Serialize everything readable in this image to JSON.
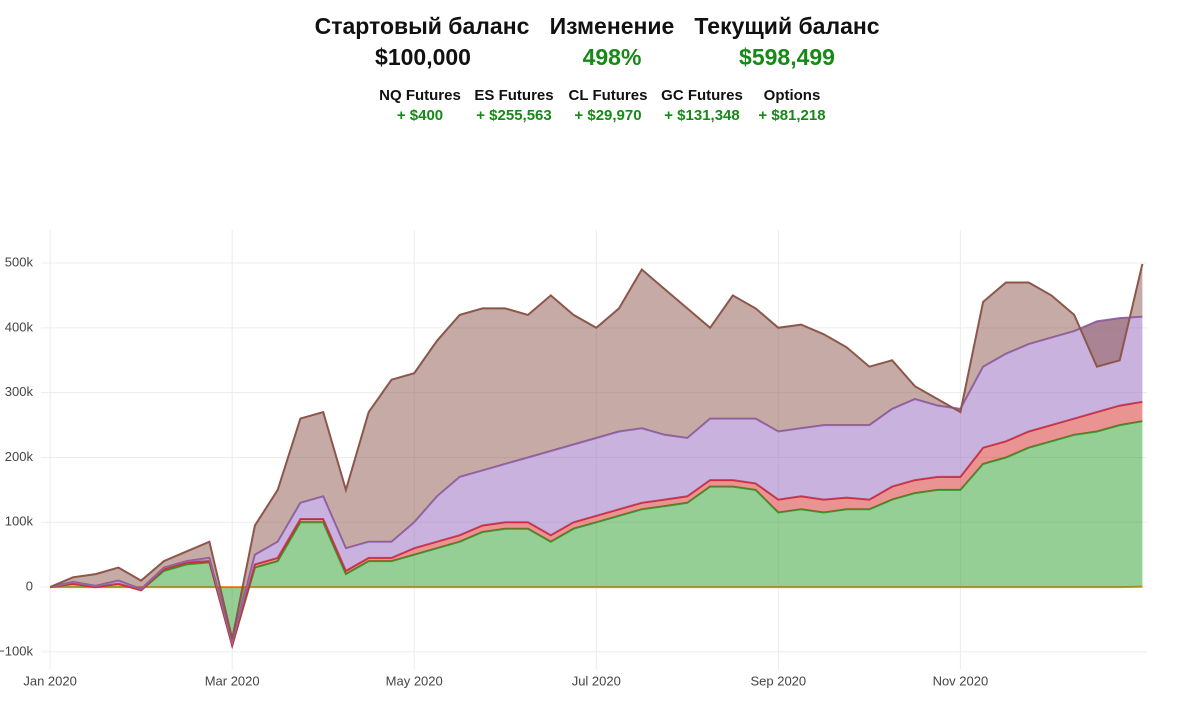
{
  "header": {
    "labels": [
      "Стартовый баланс",
      "Изменение",
      "Текущий баланс"
    ],
    "values": [
      "$100,000",
      "498%",
      "$598,499"
    ],
    "totals": [
      "+ $400",
      "+ $255,563",
      "+ $29,970",
      "+ $131,348",
      "+ $81,218"
    ]
  },
  "chart_data": {
    "type": "stacked_area",
    "x": [
      0,
      0.25,
      0.5,
      0.75,
      1,
      1.25,
      1.5,
      1.75,
      2,
      2.25,
      2.5,
      2.75,
      3,
      3.25,
      3.5,
      3.75,
      4,
      4.25,
      4.5,
      4.75,
      5,
      5.25,
      5.5,
      5.75,
      6,
      6.25,
      6.5,
      6.75,
      7,
      7.25,
      7.5,
      7.75,
      8,
      8.25,
      8.5,
      8.75,
      9,
      9.25,
      9.5,
      9.75,
      10,
      10.25,
      10.5,
      10.75,
      11,
      11.25,
      11.5,
      11.75,
      12
    ],
    "xlim": [
      -0.1,
      12.05
    ],
    "xticks": [
      {
        "value": 0,
        "label": "Jan 2020"
      },
      {
        "value": 2,
        "label": "Mar 2020"
      },
      {
        "value": 4,
        "label": "May 2020"
      },
      {
        "value": 6,
        "label": "Jul 2020"
      },
      {
        "value": 8,
        "label": "Sep 2020"
      },
      {
        "value": 10,
        "label": "Nov 2020"
      }
    ],
    "ylim": [
      -128000,
      551000
    ],
    "yticks": [
      {
        "value": -100000,
        "label": "−100k"
      },
      0,
      {
        "value": 100000,
        "label": "100k"
      },
      {
        "value": 200000,
        "label": "200k"
      },
      {
        "value": 300000,
        "label": "300k"
      },
      {
        "value": 400000,
        "label": "400k"
      },
      {
        "value": 500000,
        "label": "500k"
      }
    ],
    "grid": true,
    "series": [
      {
        "name": "NQ Futures",
        "color": "#ff7f0e",
        "values": [
          0,
          0,
          0,
          0,
          0,
          0,
          0,
          0,
          0,
          0,
          0,
          0,
          0,
          0,
          0,
          0,
          0,
          0,
          0,
          0,
          0,
          0,
          0,
          0,
          0,
          0,
          0,
          0,
          0,
          0,
          0,
          0,
          0,
          0,
          0,
          0,
          0,
          0,
          0,
          0,
          0,
          0,
          0,
          0,
          0,
          0,
          0,
          0,
          400
        ]
      },
      {
        "name": "ES Futures",
        "color": "#2ca02c",
        "values": [
          0,
          5000,
          0,
          5000,
          -5000,
          25000,
          35000,
          38000,
          -90000,
          30000,
          40000,
          100000,
          100000,
          20000,
          40000,
          40000,
          50000,
          60000,
          70000,
          85000,
          90000,
          90000,
          70000,
          90000,
          100000,
          110000,
          120000,
          125000,
          130000,
          155000,
          155000,
          150000,
          115000,
          120000,
          115000,
          120000,
          120000,
          135000,
          145000,
          150000,
          150000,
          190000,
          200000,
          215000,
          225000,
          235000,
          240000,
          250000,
          255563
        ]
      },
      {
        "name": "CL Futures",
        "color": "#d62728",
        "values": [
          0,
          0,
          0,
          0,
          0,
          3000,
          3000,
          2000,
          0,
          5000,
          5000,
          5000,
          5000,
          5000,
          5000,
          5000,
          10000,
          10000,
          10000,
          10000,
          10000,
          10000,
          10000,
          10000,
          10000,
          10000,
          10000,
          10000,
          10000,
          10000,
          10000,
          10000,
          20000,
          20000,
          20000,
          18000,
          15000,
          20000,
          20000,
          20000,
          20000,
          25000,
          25000,
          25000,
          25000,
          25000,
          30000,
          30000,
          29970
        ]
      },
      {
        "name": "GC Futures",
        "color": "#9467bd",
        "values": [
          0,
          3000,
          2000,
          5000,
          2000,
          2000,
          2000,
          5000,
          5000,
          15000,
          25000,
          25000,
          35000,
          35000,
          25000,
          25000,
          40000,
          70000,
          90000,
          85000,
          90000,
          100000,
          130000,
          120000,
          120000,
          120000,
          115000,
          100000,
          90000,
          95000,
          95000,
          100000,
          105000,
          105000,
          115000,
          112000,
          115000,
          120000,
          125000,
          110000,
          105000,
          125000,
          135000,
          135000,
          135000,
          135000,
          140000,
          135000,
          131348
        ]
      },
      {
        "name": "Options",
        "color": "#8c564b",
        "values": [
          0,
          7000,
          18000,
          20000,
          13000,
          10000,
          15000,
          25000,
          5000,
          45000,
          80000,
          130000,
          130000,
          90000,
          200000,
          250000,
          230000,
          240000,
          250000,
          250000,
          240000,
          220000,
          240000,
          200000,
          170000,
          190000,
          245000,
          225000,
          200000,
          140000,
          190000,
          170000,
          160000,
          160000,
          140000,
          120000,
          90000,
          75000,
          20000,
          10000,
          -5000,
          100000,
          110000,
          95000,
          65000,
          25000,
          -70000,
          -65000,
          81218
        ]
      }
    ]
  }
}
